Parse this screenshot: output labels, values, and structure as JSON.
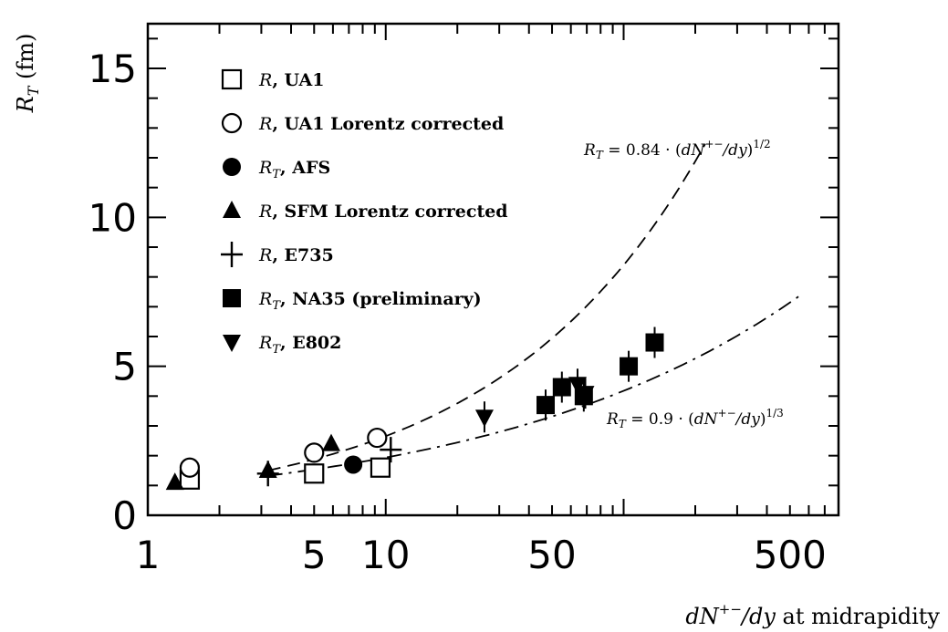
{
  "chart_data": {
    "type": "scatter",
    "title": "",
    "xlabel": "dN⁺⁻/dy at midrapidity",
    "ylabel": "R_T (fm)",
    "xscale": "log",
    "xlim": [
      1,
      800
    ],
    "ylim": [
      0,
      16.5
    ],
    "x_ticks": [
      {
        "value": 1,
        "label": "1"
      },
      {
        "value": 5,
        "label": "5"
      },
      {
        "value": 10,
        "label": "10"
      },
      {
        "value": 50,
        "label": "50"
      },
      {
        "value": 500,
        "label": "500"
      }
    ],
    "y_ticks": [
      {
        "value": 0,
        "label": "0"
      },
      {
        "value": 5,
        "label": "5"
      },
      {
        "value": 10,
        "label": "10"
      },
      {
        "value": 15,
        "label": "15"
      }
    ],
    "legend_position": "top-left",
    "series": [
      {
        "name": "R, UA1",
        "marker": "square-open",
        "points": [
          [
            1.5,
            1.2
          ],
          [
            5.0,
            1.4
          ],
          [
            9.5,
            1.6
          ]
        ]
      },
      {
        "name": "R, UA1 Lorentz corrected",
        "marker": "circle-open",
        "points": [
          [
            1.5,
            1.6
          ],
          [
            5.0,
            2.1
          ],
          [
            9.2,
            2.6
          ]
        ]
      },
      {
        "name": "R_T, AFS",
        "marker": "circle-filled",
        "points": [
          [
            7.3,
            1.7
          ]
        ]
      },
      {
        "name": "R, SFM Lorentz corrected",
        "marker": "triangle-up-filled",
        "points": [
          [
            1.3,
            1.1
          ],
          [
            3.2,
            1.5
          ],
          [
            5.9,
            2.4
          ]
        ]
      },
      {
        "name": "R, E735",
        "marker": "cross",
        "points": [
          [
            3.2,
            1.4
          ],
          [
            10.5,
            2.2
          ]
        ]
      },
      {
        "name": "R_T, NA35 (preliminary)",
        "marker": "square-filled",
        "points": [
          [
            47,
            3.7
          ],
          [
            55,
            4.3
          ],
          [
            68,
            4.0
          ],
          [
            105,
            5.0
          ],
          [
            135,
            5.8
          ]
        ]
      },
      {
        "name": "R_T, E802",
        "marker": "triangle-down-filled",
        "points": [
          [
            26,
            3.3
          ],
          [
            64,
            4.4
          ],
          [
            69,
            4.1
          ]
        ]
      }
    ],
    "fits": [
      {
        "label": "R_T = 0.84 · (dN⁺⁻/dy)^1/2",
        "coefficient": 0.84,
        "exponent": 0.5,
        "x_range": [
          3.2,
          220
        ],
        "style": "dashed"
      },
      {
        "label": "R_T = 0.9 · (dN⁺⁻/dy)^1/3",
        "coefficient": 0.9,
        "exponent": 0.3333,
        "x_range": [
          3.2,
          570
        ],
        "style": "dash-dot"
      }
    ]
  }
}
